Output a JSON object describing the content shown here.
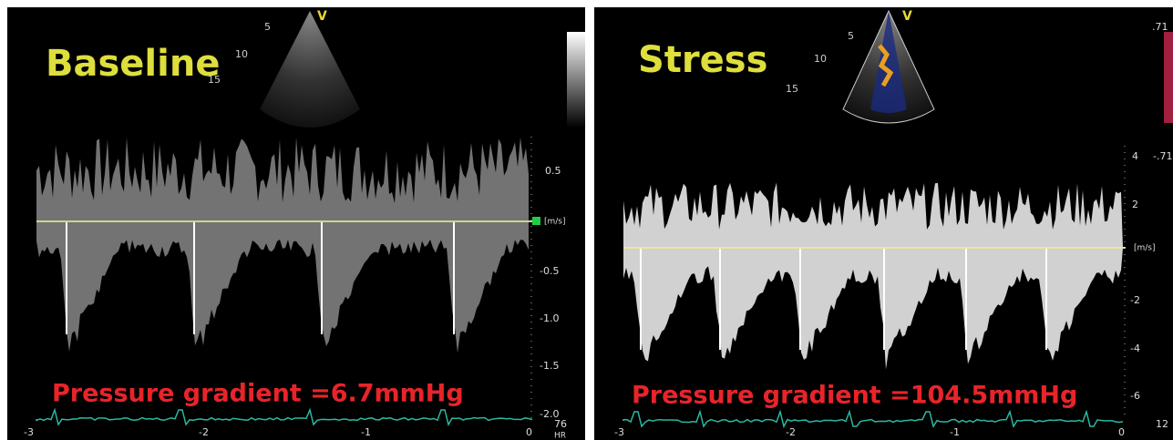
{
  "panels": [
    {
      "title": "Baseline",
      "depth_marks": [
        "5",
        "10",
        "15"
      ],
      "probe_mark": "V",
      "velocity_scale": [
        "0.5",
        "[m/s]",
        "-0.5",
        "-1.0",
        "-1.5",
        "-2.0"
      ],
      "heart_rate": "76",
      "heart_rate_label": "HR",
      "time_scale": [
        "-3",
        "-2",
        "-1",
        "0"
      ],
      "measurement": "Pressure gradient =6.7mmHg"
    },
    {
      "title": "Stress",
      "depth_marks": [
        "5",
        "10",
        "15"
      ],
      "probe_mark": "V",
      "color_scale_top": ".71",
      "color_scale_bottom": "-.71",
      "velocity_scale": [
        "4",
        "2",
        "[m/s]",
        "-2",
        "-4",
        "-6"
      ],
      "heart_rate": "12",
      "time_scale": [
        "-3",
        "-2",
        "-1",
        "0"
      ],
      "measurement": "Pressure gradient =104.5mmHg"
    }
  ]
}
